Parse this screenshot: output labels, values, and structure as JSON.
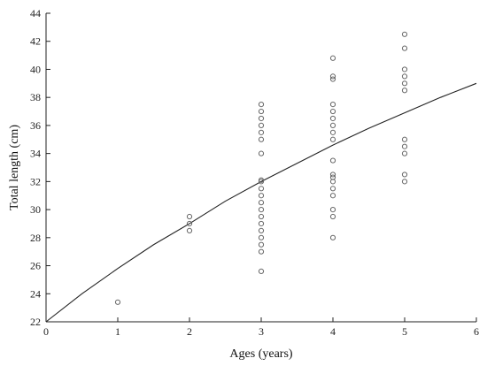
{
  "chart_data": {
    "type": "scatter",
    "xlabel": "Ages (years)",
    "ylabel": "Total length (cm)",
    "xlim": [
      0,
      6
    ],
    "ylim": [
      22,
      44
    ],
    "x_ticks": [
      0,
      1,
      2,
      3,
      4,
      5,
      6
    ],
    "y_ticks": [
      22,
      24,
      26,
      28,
      30,
      32,
      34,
      36,
      38,
      40,
      42,
      44
    ],
    "grid": false,
    "series": [
      {
        "type": "scatter",
        "marker": "open-circle",
        "color": "#666666",
        "points": [
          [
            1,
            23.4
          ],
          [
            2,
            28.5
          ],
          [
            2,
            29.0
          ],
          [
            2,
            29.5
          ],
          [
            3,
            25.6
          ],
          [
            3,
            27.0
          ],
          [
            3,
            27.5
          ],
          [
            3,
            28.0
          ],
          [
            3,
            28.5
          ],
          [
            3,
            29.0
          ],
          [
            3,
            29.5
          ],
          [
            3,
            30.0
          ],
          [
            3,
            30.5
          ],
          [
            3,
            31.0
          ],
          [
            3,
            31.5
          ],
          [
            3,
            32.0
          ],
          [
            3,
            32.1
          ],
          [
            3,
            34.0
          ],
          [
            3,
            35.0
          ],
          [
            3,
            35.5
          ],
          [
            3,
            36.0
          ],
          [
            3,
            36.5
          ],
          [
            3,
            37.0
          ],
          [
            3,
            37.5
          ],
          [
            4,
            28.0
          ],
          [
            4,
            29.5
          ],
          [
            4,
            30.0
          ],
          [
            4,
            31.0
          ],
          [
            4,
            31.5
          ],
          [
            4,
            32.0
          ],
          [
            4,
            32.3
          ],
          [
            4,
            32.5
          ],
          [
            4,
            33.5
          ],
          [
            4,
            35.0
          ],
          [
            4,
            35.5
          ],
          [
            4,
            36.0
          ],
          [
            4,
            36.5
          ],
          [
            4,
            37.0
          ],
          [
            4,
            37.5
          ],
          [
            4,
            39.3
          ],
          [
            4,
            39.5
          ],
          [
            4,
            40.8
          ],
          [
            5,
            32.0
          ],
          [
            5,
            32.5
          ],
          [
            5,
            34.0
          ],
          [
            5,
            34.5
          ],
          [
            5,
            35.0
          ],
          [
            5,
            38.5
          ],
          [
            5,
            39.0
          ],
          [
            5,
            39.5
          ],
          [
            5,
            40.0
          ],
          [
            5,
            41.5
          ],
          [
            5,
            42.5
          ]
        ]
      },
      {
        "type": "line",
        "color": "#222222",
        "x": [
          0,
          0.5,
          1,
          1.5,
          2,
          2.5,
          3,
          3.5,
          4,
          4.5,
          5,
          5.5,
          6
        ],
        "y": [
          22.0,
          24.0,
          25.8,
          27.5,
          29.0,
          30.6,
          32.0,
          33.3,
          34.6,
          35.8,
          36.9,
          38.0,
          39.0
        ]
      }
    ]
  }
}
